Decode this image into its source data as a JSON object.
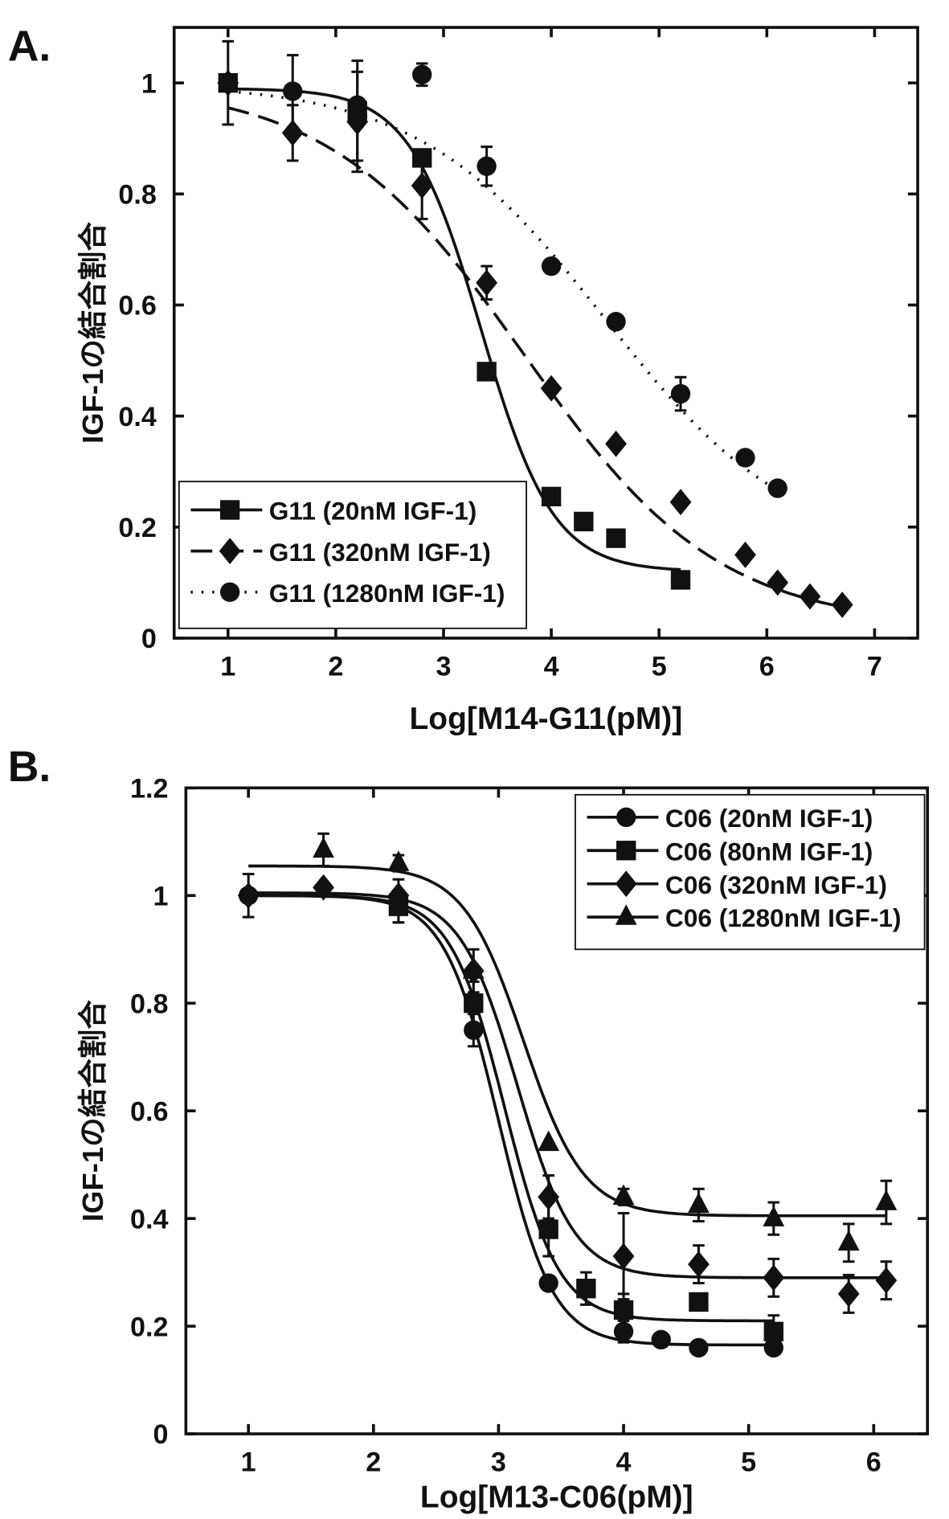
{
  "chart_data": [
    {
      "type": "line",
      "panel_label": "A.",
      "xlabel": "Log[M14-G11(pM)]",
      "ylabel": "IGF-1の結合割合",
      "xlim": [
        0.5,
        7.4
      ],
      "ylim": [
        0,
        1.1
      ],
      "xticks": [
        "1",
        "2",
        "3",
        "4",
        "5",
        "6",
        "7"
      ],
      "yticks": [
        "0",
        "0.2",
        "0.4",
        "0.6",
        "0.8",
        "1"
      ],
      "legend": "bottom-left",
      "grid": false,
      "series": [
        {
          "name": "G11 (20nM IGF-1)",
          "marker": "square",
          "line": "solid",
          "x": [
            1,
            2.2,
            2.8,
            3.4,
            4.0,
            4.3,
            4.6,
            5.2
          ],
          "y": [
            1.0,
            0.95,
            0.865,
            0.48,
            0.255,
            0.21,
            0.18,
            0.105
          ],
          "err": [
            0.075,
            0.09,
            0,
            0,
            0,
            0,
            0,
            0
          ],
          "fit": {
            "top": 0.99,
            "bottom": 0.12,
            "logEC50": 3.35,
            "hill": 1.3,
            "xrange": [
              1,
              5.2
            ]
          }
        },
        {
          "name": "G11 (320nM IGF-1)",
          "marker": "diamond",
          "line": "dashed",
          "x": [
            1,
            1.6,
            2.2,
            2.8,
            3.4,
            4.0,
            4.6,
            5.2,
            5.8,
            6.1,
            6.4,
            6.7
          ],
          "y": [
            1.0,
            0.91,
            0.93,
            0.815,
            0.64,
            0.45,
            0.35,
            0.245,
            0.15,
            0.1,
            0.075,
            0.06
          ],
          "err": [
            0,
            0.05,
            0.09,
            0.06,
            0.03,
            0,
            0,
            0,
            0,
            0,
            0,
            0
          ],
          "fit": {
            "top": 1.0,
            "bottom": 0.02,
            "logEC50": 3.75,
            "hill": 0.48,
            "xrange": [
              1,
              6.7
            ]
          }
        },
        {
          "name": "G11 (1280nM IGF-1)",
          "marker": "circle",
          "line": "dotted",
          "x": [
            1,
            1.6,
            2.2,
            2.8,
            3.4,
            4.0,
            4.6,
            5.2,
            5.8,
            6.1
          ],
          "y": [
            1.0,
            0.985,
            0.96,
            1.015,
            0.85,
            0.67,
            0.57,
            0.44,
            0.325,
            0.27
          ],
          "err": [
            0,
            0.065,
            0,
            0.02,
            0.035,
            0,
            0,
            0.03,
            0,
            0
          ],
          "fit": {
            "top": 1.0,
            "bottom": 0.15,
            "logEC50": 4.5,
            "hill": 0.5,
            "xrange": [
              1,
              6.1
            ]
          }
        }
      ]
    },
    {
      "type": "line",
      "panel_label": "B.",
      "xlabel": "Log[M13-C06(pM)]",
      "ylabel": "IGF-1の結合割合",
      "xlim": [
        0.5,
        6.43
      ],
      "ylim": [
        0,
        1.2
      ],
      "xticks": [
        "1",
        "2",
        "3",
        "4",
        "5",
        "6"
      ],
      "yticks": [
        "0",
        "0.2",
        "0.4",
        "0.6",
        "0.8",
        "1",
        "1.2"
      ],
      "legend": "top-right",
      "grid": false,
      "series": [
        {
          "name": "C06 (20nM IGF-1)",
          "marker": "circle",
          "line": "solid",
          "x": [
            1,
            2.2,
            2.8,
            3.4,
            4.0,
            4.3,
            4.6,
            5.2
          ],
          "y": [
            1.0,
            0.99,
            0.75,
            0.28,
            0.19,
            0.175,
            0.16,
            0.16
          ],
          "err": [
            0.04,
            0.04,
            0.03,
            0,
            0.02,
            0,
            0,
            0
          ],
          "fit": {
            "top": 1.0,
            "bottom": 0.165,
            "logEC50": 3.0,
            "hill": 2.0,
            "xrange": [
              1,
              5.2
            ]
          }
        },
        {
          "name": "C06 (80nM IGF-1)",
          "marker": "square",
          "line": "solid",
          "x": [
            2.2,
            2.8,
            3.4,
            3.7,
            4.0,
            4.6,
            5.2
          ],
          "y": [
            0.98,
            0.8,
            0.38,
            0.27,
            0.23,
            0.245,
            0.19
          ],
          "err": [
            0.03,
            0.04,
            0.05,
            0.03,
            0.03,
            0,
            0.03
          ],
          "fit": {
            "top": 1.0,
            "bottom": 0.21,
            "logEC50": 3.05,
            "hill": 2.0,
            "xrange": [
              1,
              5.2
            ]
          }
        },
        {
          "name": "C06 (320nM IGF-1)",
          "marker": "diamond",
          "line": "solid",
          "x": [
            1,
            1.6,
            2.2,
            2.8,
            3.4,
            4.0,
            4.6,
            5.2,
            5.8,
            6.1
          ],
          "y": [
            1.0,
            1.015,
            1.0,
            0.86,
            0.44,
            0.33,
            0.315,
            0.29,
            0.26,
            0.285
          ],
          "err": [
            0,
            0,
            0,
            0,
            0.04,
            0.08,
            0.035,
            0.035,
            0.035,
            0.035
          ],
          "fit": {
            "top": 1.005,
            "bottom": 0.29,
            "logEC50": 3.15,
            "hill": 1.9,
            "xrange": [
              1,
              6.1
            ]
          }
        },
        {
          "name": "C06 (1280nM IGF-1)",
          "marker": "triangle",
          "line": "solid",
          "x": [
            1.6,
            2.2,
            2.8,
            3.4,
            4.0,
            4.6,
            5.2,
            5.8,
            6.1
          ],
          "y": [
            1.085,
            1.06,
            0.86,
            0.54,
            0.44,
            0.425,
            0.4,
            0.355,
            0.43
          ],
          "err": [
            0.03,
            0.015,
            0.04,
            0,
            0.015,
            0.03,
            0.03,
            0.035,
            0.04
          ],
          "fit": {
            "top": 1.055,
            "bottom": 0.405,
            "logEC50": 3.2,
            "hill": 1.8,
            "xrange": [
              1,
              6.1
            ]
          }
        }
      ]
    }
  ]
}
